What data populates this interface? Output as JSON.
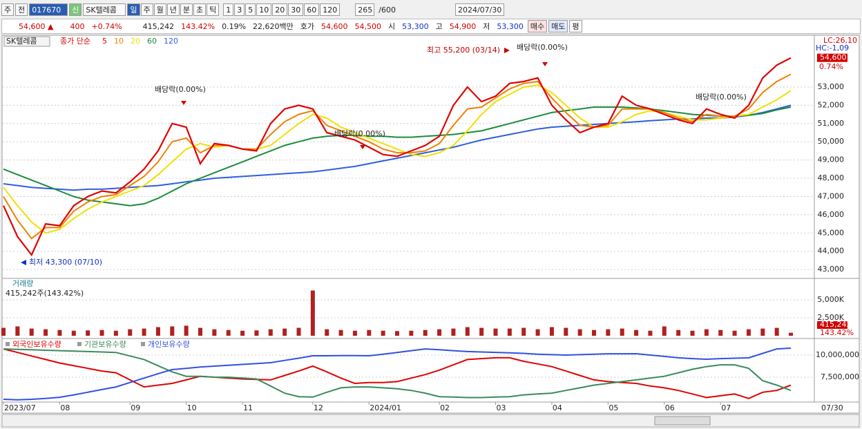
{
  "toolbar": {
    "market": "주",
    "mode": "전",
    "code": "017670",
    "new_tag": "신",
    "name": "SK텔레콤",
    "periods": [
      "일",
      "주",
      "월",
      "년",
      "분",
      "초",
      "틱"
    ],
    "intervals": [
      "1",
      "3",
      "5",
      "10",
      "20",
      "30",
      "60",
      "120"
    ],
    "count": "265",
    "max": "/600",
    "date": "2024/07/30"
  },
  "quote_bar": {
    "price": "54,600 ▲",
    "change": "400",
    "change_pct": "+0.74%",
    "volume": "415,242",
    "volume_ratio": "143.42%",
    "turnover": "0.19%",
    "amount": "22,620백만",
    "bid_label": "호가",
    "ask": "54,600",
    "bid": "54,500",
    "open_label": "시",
    "open": "53,300",
    "high_label": "고",
    "high": "54,900",
    "low_label": "저",
    "low": "53,300",
    "buy": "매수",
    "sell": "매도",
    "avg": "평"
  },
  "chart_data": [
    {
      "type": "line",
      "title": "SK텔레콤",
      "legend_prefix": "종가 단순",
      "categories": [
        "2023/07",
        null,
        null,
        null,
        "08",
        null,
        null,
        null,
        null,
        "09",
        null,
        null,
        null,
        "10",
        null,
        null,
        null,
        "11",
        null,
        null,
        null,
        null,
        "12",
        null,
        null,
        null,
        "2024/01",
        null,
        null,
        null,
        null,
        "02",
        null,
        null,
        null,
        "03",
        null,
        null,
        null,
        "04",
        null,
        null,
        null,
        "05",
        null,
        null,
        null,
        "06",
        null,
        null,
        null,
        "07",
        null,
        null,
        null,
        null,
        "07/30"
      ],
      "series": [
        {
          "name": "5",
          "color": "#e00000",
          "values": [
            46500,
            44800,
            43800,
            45500,
            45400,
            46500,
            47000,
            47300,
            47200,
            47800,
            48500,
            49500,
            51000,
            50800,
            48800,
            49900,
            49800,
            49600,
            49500,
            51000,
            51800,
            52000,
            51800,
            50500,
            50300,
            50100,
            49700,
            49300,
            49200,
            49500,
            49800,
            50300,
            52000,
            53000,
            52200,
            52500,
            53200,
            53300,
            53500,
            52000,
            51200,
            50500,
            50800,
            51000,
            52500,
            52000,
            51800,
            51500,
            51200,
            51000,
            51800,
            51500,
            51300,
            52000,
            53500,
            54200,
            54600
          ]
        },
        {
          "name": "10",
          "color": "#f08000",
          "values": [
            47000,
            45700,
            44700,
            45300,
            45300,
            46200,
            46700,
            47000,
            47100,
            47600,
            48100,
            48900,
            50000,
            50200,
            49400,
            49800,
            49800,
            49600,
            49600,
            50400,
            51100,
            51500,
            51700,
            50900,
            50600,
            50300,
            50000,
            49600,
            49400,
            49400,
            49500,
            49900,
            50900,
            51800,
            51900,
            52400,
            52900,
            53200,
            53300,
            52400,
            51600,
            50900,
            50800,
            50900,
            51800,
            51800,
            51800,
            51600,
            51300,
            51100,
            51500,
            51400,
            51400,
            51800,
            52700,
            53300,
            53700
          ]
        },
        {
          "name": "20",
          "color": "#f0e000",
          "values": [
            47500,
            46500,
            45600,
            45000,
            45200,
            45800,
            46300,
            46700,
            47000,
            47300,
            47600,
            48200,
            48900,
            49600,
            49900,
            49700,
            49800,
            49600,
            49600,
            49800,
            50400,
            51000,
            51500,
            51300,
            50800,
            50500,
            50200,
            49900,
            49600,
            49300,
            49200,
            49400,
            49800,
            50600,
            51500,
            52200,
            52600,
            53000,
            53100,
            52700,
            52000,
            51300,
            50800,
            50800,
            51100,
            51500,
            51700,
            51600,
            51400,
            51200,
            51200,
            51300,
            51400,
            51500,
            51900,
            52300,
            52800
          ]
        },
        {
          "name": "60",
          "color": "#1a8c3a",
          "values": [
            48500,
            48200,
            47900,
            47600,
            47300,
            47000,
            46800,
            46700,
            46600,
            46500,
            46600,
            46900,
            47300,
            47700,
            48000,
            48300,
            48600,
            48900,
            49200,
            49500,
            49800,
            50000,
            50200,
            50300,
            50350,
            50350,
            50300,
            50300,
            50250,
            50250,
            50300,
            50350,
            50400,
            50500,
            50600,
            50800,
            51000,
            51200,
            51400,
            51600,
            51700,
            51800,
            51900,
            51900,
            51900,
            51850,
            51800,
            51700,
            51600,
            51500,
            51450,
            51400,
            51400,
            51450,
            51550,
            51750,
            51900
          ]
        },
        {
          "name": "120",
          "color": "#2f5de0",
          "values": [
            47700,
            47600,
            47500,
            47450,
            47400,
            47350,
            47400,
            47400,
            47450,
            47500,
            47550,
            47600,
            47700,
            47800,
            47900,
            48000,
            48050,
            48100,
            48150,
            48200,
            48250,
            48300,
            48350,
            48450,
            48550,
            48650,
            48800,
            48950,
            49100,
            49250,
            49400,
            49550,
            49700,
            49900,
            50100,
            50250,
            50400,
            50550,
            50700,
            50800,
            50850,
            50900,
            50950,
            51000,
            51050,
            51100,
            51150,
            51200,
            51250,
            51250,
            51300,
            51300,
            51350,
            51450,
            51600,
            51800,
            52000
          ]
        }
      ],
      "ylim": [
        42550,
        55800
      ],
      "yticks": [
        {
          "value": 43000,
          "label": "43,000"
        },
        {
          "value": 44000,
          "label": "44,000"
        },
        {
          "value": 45000,
          "label": "45,000"
        },
        {
          "value": 46000,
          "label": "46,000"
        },
        {
          "value": 47000,
          "label": "47,000"
        },
        {
          "value": 48000,
          "label": "48,000"
        },
        {
          "value": 49000,
          "label": "49,000"
        },
        {
          "value": 50000,
          "label": "50,000"
        },
        {
          "value": 51000,
          "label": "51,000"
        },
        {
          "value": 52000,
          "label": "52,000"
        },
        {
          "value": 53000,
          "label": "53,000"
        }
      ],
      "grid": true,
      "annotations": [
        "최고 55,200 (03/14)",
        "배당락(0.00%)",
        "배당락(0.00%)",
        "배당락(0.00%)",
        "배당락(0.00%)",
        "최저 43,300 (07/10)"
      ],
      "side_labels": [
        "LC:26,10",
        "HC:-1,09"
      ],
      "last": {
        "value": 54600,
        "label": "54,600"
      },
      "last_change": "0.74%"
    },
    {
      "type": "bar",
      "title": "거래량",
      "subtitle": "415,242주(143.42%)",
      "color": "#b02020",
      "values": [
        1100,
        1300,
        1000,
        900,
        800,
        700,
        750,
        800,
        700,
        900,
        1000,
        1200,
        1300,
        1400,
        1100,
        900,
        800,
        700,
        750,
        900,
        1000,
        1100,
        6300,
        900,
        800,
        700,
        800,
        700,
        650,
        700,
        800,
        900,
        1000,
        1200,
        1100,
        1000,
        1000,
        1100,
        900,
        1200,
        1100,
        900,
        800,
        900,
        1000,
        800,
        700,
        1300,
        800,
        700,
        900,
        800,
        700,
        900,
        1000,
        1100,
        415.242
      ],
      "ylim": [
        0,
        7700
      ],
      "yticks": [
        {
          "value": 5000,
          "label": "5,000K"
        },
        {
          "value": 2500,
          "label": "2,500K"
        }
      ],
      "last_label": "415,242",
      "last_ratio": "143.42%"
    },
    {
      "type": "line",
      "series": [
        {
          "name": "외국인보유수량",
          "color": "#e00000",
          "values": [
            10700000,
            10300000,
            9900000,
            9500000,
            9100000,
            8800000,
            8500000,
            8200000,
            8000000,
            7200000,
            6400000,
            6600000,
            6800000,
            7200000,
            7600000,
            7500000,
            7400000,
            7300000,
            7250000,
            7200000,
            7700000,
            8200000,
            8750000,
            8100000,
            7400000,
            6800000,
            6900000,
            6900000,
            7000000,
            7400000,
            7800000,
            8300000,
            8900000,
            9500000,
            9600000,
            9700000,
            9700000,
            9300000,
            9000000,
            8700000,
            8200000,
            7700000,
            7200000,
            7000000,
            6900000,
            6800000,
            6500000,
            6300000,
            6000000,
            5600000,
            5200000,
            5400000,
            5600000,
            5100000,
            5800000,
            6000000,
            6600000
          ]
        },
        {
          "name": "기관보유수량",
          "color": "#3a8a5a",
          "values": [
            10700000,
            10650000,
            10600000,
            10550000,
            10500000,
            10450000,
            10400000,
            10350000,
            10300000,
            9900000,
            9500000,
            8800000,
            8100000,
            7600000,
            7600000,
            7500000,
            7500000,
            7400000,
            7300000,
            6500000,
            5700000,
            5300000,
            5250000,
            5800000,
            6300000,
            6400000,
            6400000,
            6300000,
            6200000,
            6000000,
            5700000,
            5300000,
            5250000,
            5200000,
            5200000,
            5250000,
            5300000,
            5500000,
            5600000,
            5700000,
            6000000,
            6300000,
            6600000,
            6800000,
            7000000,
            7200000,
            7400000,
            7600000,
            8000000,
            8400000,
            8700000,
            8900000,
            8900000,
            8500000,
            7100000,
            6600000,
            6000000
          ]
        },
        {
          "name": "개인보유수량",
          "color": "#2f50e0",
          "values": [
            5000000,
            4950000,
            5000000,
            5100000,
            5230000,
            5500000,
            5800000,
            6100000,
            6400000,
            6900000,
            7400000,
            7900000,
            8360000,
            8500000,
            8650000,
            8750000,
            8850000,
            8950000,
            9050000,
            9140000,
            9400000,
            9650000,
            9920000,
            9920000,
            9950000,
            9950000,
            9920000,
            10100000,
            10300000,
            10500000,
            10700000,
            10600000,
            10500000,
            10400000,
            10350000,
            10310000,
            10250000,
            10200000,
            10100000,
            10050000,
            10000000,
            10050000,
            10100000,
            10150000,
            10150000,
            10160000,
            10000000,
            9850000,
            9700000,
            9600000,
            9530000,
            9600000,
            9650000,
            9690000,
            10200000,
            10700000,
            10780000
          ]
        }
      ],
      "ylim": [
        4690000,
        11720000
      ],
      "yticks": [
        {
          "value": 10000000,
          "label": "10,000,000"
        },
        {
          "value": 7500000,
          "label": "7,500,000"
        }
      ]
    }
  ]
}
